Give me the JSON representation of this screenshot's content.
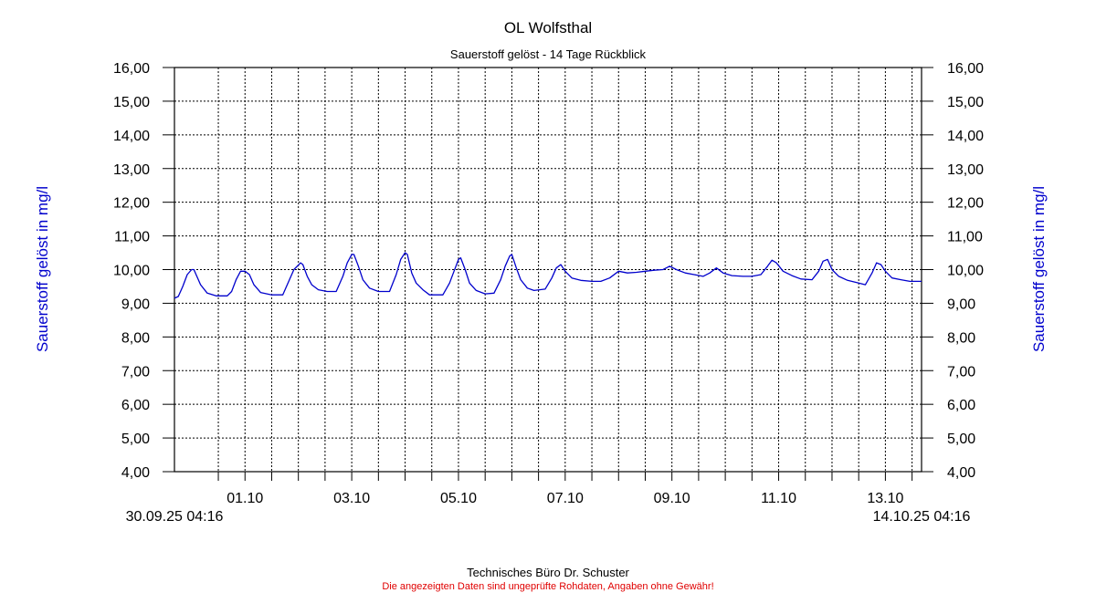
{
  "chart_data": {
    "type": "line",
    "title": "OL Wolfsthal",
    "subtitle": "Sauerstoff gelöst - 14 Tage Rückblick",
    "ylabel": "Sauerstoff gelöst in mg/l",
    "ylabel_right": "Sauerstoff gelöst in mg/l",
    "ylim": [
      4,
      16
    ],
    "yticks": [
      "4,00",
      "5,00",
      "6,00",
      "7,00",
      "8,00",
      "9,00",
      "10,00",
      "11,00",
      "12,00",
      "13,00",
      "14,00",
      "15,00",
      "16,00"
    ],
    "xlim": [
      "2025-09-30 04:16",
      "2025-10-14 04:16"
    ],
    "xticks_major": [
      "01.10",
      "03.10",
      "05.10",
      "07.10",
      "09.10",
      "11.10",
      "13.10"
    ],
    "start_label": "30.09.25 04:16",
    "end_label": "14.10.25 04:16",
    "grid": true,
    "series": [
      {
        "color": "#0000cc",
        "points": [
          [
            "2025-09-30 04:16",
            9.15
          ],
          [
            "2025-09-30 06:00",
            9.2
          ],
          [
            "2025-09-30 08:00",
            9.5
          ],
          [
            "2025-09-30 10:00",
            9.85
          ],
          [
            "2025-09-30 12:00",
            10.0
          ],
          [
            "2025-09-30 13:00",
            10.0
          ],
          [
            "2025-09-30 14:00",
            9.85
          ],
          [
            "2025-09-30 16:00",
            9.55
          ],
          [
            "2025-09-30 19:00",
            9.3
          ],
          [
            "2025-09-30 23:00",
            9.22
          ],
          [
            "2025-10-01 04:00",
            9.22
          ],
          [
            "2025-10-01 06:00",
            9.35
          ],
          [
            "2025-10-01 08:00",
            9.7
          ],
          [
            "2025-10-01 10:00",
            9.95
          ],
          [
            "2025-10-01 12:00",
            9.95
          ],
          [
            "2025-10-01 14:00",
            9.85
          ],
          [
            "2025-10-01 16:00",
            9.55
          ],
          [
            "2025-10-01 19:00",
            9.32
          ],
          [
            "2025-10-02 00:00",
            9.25
          ],
          [
            "2025-10-02 05:00",
            9.25
          ],
          [
            "2025-10-02 08:00",
            9.7
          ],
          [
            "2025-10-02 10:00",
            10.0
          ],
          [
            "2025-10-02 13:00",
            10.2
          ],
          [
            "2025-10-02 14:00",
            10.15
          ],
          [
            "2025-10-02 16:00",
            9.8
          ],
          [
            "2025-10-02 18:00",
            9.55
          ],
          [
            "2025-10-02 21:00",
            9.4
          ],
          [
            "2025-10-03 01:00",
            9.35
          ],
          [
            "2025-10-03 05:00",
            9.35
          ],
          [
            "2025-10-03 08:00",
            9.8
          ],
          [
            "2025-10-03 10:00",
            10.2
          ],
          [
            "2025-10-03 12:00",
            10.45
          ],
          [
            "2025-10-03 13:00",
            10.45
          ],
          [
            "2025-10-03 15:00",
            10.1
          ],
          [
            "2025-10-03 17:00",
            9.7
          ],
          [
            "2025-10-03 20:00",
            9.45
          ],
          [
            "2025-10-04 00:00",
            9.35
          ],
          [
            "2025-10-04 05:00",
            9.35
          ],
          [
            "2025-10-04 08:00",
            9.85
          ],
          [
            "2025-10-04 10:00",
            10.3
          ],
          [
            "2025-10-04 12:00",
            10.5
          ],
          [
            "2025-10-04 13:00",
            10.45
          ],
          [
            "2025-10-04 15:00",
            9.9
          ],
          [
            "2025-10-04 17:00",
            9.6
          ],
          [
            "2025-10-04 20:00",
            9.4
          ],
          [
            "2025-10-04 23:00",
            9.25
          ],
          [
            "2025-10-05 05:00",
            9.25
          ],
          [
            "2025-10-05 08:00",
            9.6
          ],
          [
            "2025-10-05 10:00",
            9.95
          ],
          [
            "2025-10-05 12:00",
            10.3
          ],
          [
            "2025-10-05 13:00",
            10.35
          ],
          [
            "2025-10-05 15:00",
            10.0
          ],
          [
            "2025-10-05 17:00",
            9.6
          ],
          [
            "2025-10-05 20:00",
            9.38
          ],
          [
            "2025-10-06 00:00",
            9.28
          ],
          [
            "2025-10-06 04:00",
            9.3
          ],
          [
            "2025-10-06 07:00",
            9.7
          ],
          [
            "2025-10-06 09:00",
            10.1
          ],
          [
            "2025-10-06 11:00",
            10.4
          ],
          [
            "2025-10-06 12:00",
            10.45
          ],
          [
            "2025-10-06 14:00",
            10.05
          ],
          [
            "2025-10-06 16:00",
            9.7
          ],
          [
            "2025-10-06 19:00",
            9.45
          ],
          [
            "2025-10-06 22:00",
            9.38
          ],
          [
            "2025-10-07 03:00",
            9.42
          ],
          [
            "2025-10-07 06:00",
            9.75
          ],
          [
            "2025-10-07 08:00",
            10.05
          ],
          [
            "2025-10-07 10:00",
            10.15
          ],
          [
            "2025-10-07 12:00",
            9.95
          ],
          [
            "2025-10-07 15:00",
            9.75
          ],
          [
            "2025-10-07 19:00",
            9.68
          ],
          [
            "2025-10-08 00:00",
            9.65
          ],
          [
            "2025-10-08 04:00",
            9.65
          ],
          [
            "2025-10-08 08:00",
            9.75
          ],
          [
            "2025-10-08 12:00",
            9.95
          ],
          [
            "2025-10-08 16:00",
            9.9
          ],
          [
            "2025-10-08 20:00",
            9.92
          ],
          [
            "2025-10-09 00:00",
            9.95
          ],
          [
            "2025-10-09 04:00",
            9.98
          ],
          [
            "2025-10-09 08:00",
            10.0
          ],
          [
            "2025-10-09 11:00",
            10.1
          ],
          [
            "2025-10-09 14:00",
            10.0
          ],
          [
            "2025-10-09 18:00",
            9.9
          ],
          [
            "2025-10-09 22:00",
            9.85
          ],
          [
            "2025-10-10 02:00",
            9.8
          ],
          [
            "2025-10-10 05:00",
            9.9
          ],
          [
            "2025-10-10 08:00",
            10.05
          ],
          [
            "2025-10-10 11:00",
            9.9
          ],
          [
            "2025-10-10 15:00",
            9.82
          ],
          [
            "2025-10-10 20:00",
            9.8
          ],
          [
            "2025-10-11 00:00",
            9.8
          ],
          [
            "2025-10-11 04:00",
            9.85
          ],
          [
            "2025-10-11 07:00",
            10.1
          ],
          [
            "2025-10-11 09:00",
            10.28
          ],
          [
            "2025-10-11 11:00",
            10.2
          ],
          [
            "2025-10-11 14:00",
            9.95
          ],
          [
            "2025-10-11 18:00",
            9.82
          ],
          [
            "2025-10-11 22:00",
            9.72
          ],
          [
            "2025-10-12 03:00",
            9.7
          ],
          [
            "2025-10-12 06:00",
            9.95
          ],
          [
            "2025-10-12 08:00",
            10.25
          ],
          [
            "2025-10-12 10:00",
            10.3
          ],
          [
            "2025-10-12 12:00",
            10.0
          ],
          [
            "2025-10-12 15:00",
            9.8
          ],
          [
            "2025-10-12 19:00",
            9.68
          ],
          [
            "2025-10-13 00:00",
            9.6
          ],
          [
            "2025-10-13 03:00",
            9.55
          ],
          [
            "2025-10-13 06:00",
            9.9
          ],
          [
            "2025-10-13 08:00",
            10.2
          ],
          [
            "2025-10-13 10:00",
            10.15
          ],
          [
            "2025-10-13 12:00",
            9.95
          ],
          [
            "2025-10-13 15:00",
            9.75
          ],
          [
            "2025-10-13 19:00",
            9.7
          ],
          [
            "2025-10-13 23:00",
            9.65
          ],
          [
            "2025-10-14 04:16",
            9.65
          ]
        ]
      }
    ]
  },
  "footer": {
    "credit": "Technisches Büro Dr. Schuster",
    "disclaimer": "Die angezeigten Daten sind ungeprüfte Rohdaten, Angaben ohne Gewähr!",
    "disclaimer_color": "#e00000"
  }
}
